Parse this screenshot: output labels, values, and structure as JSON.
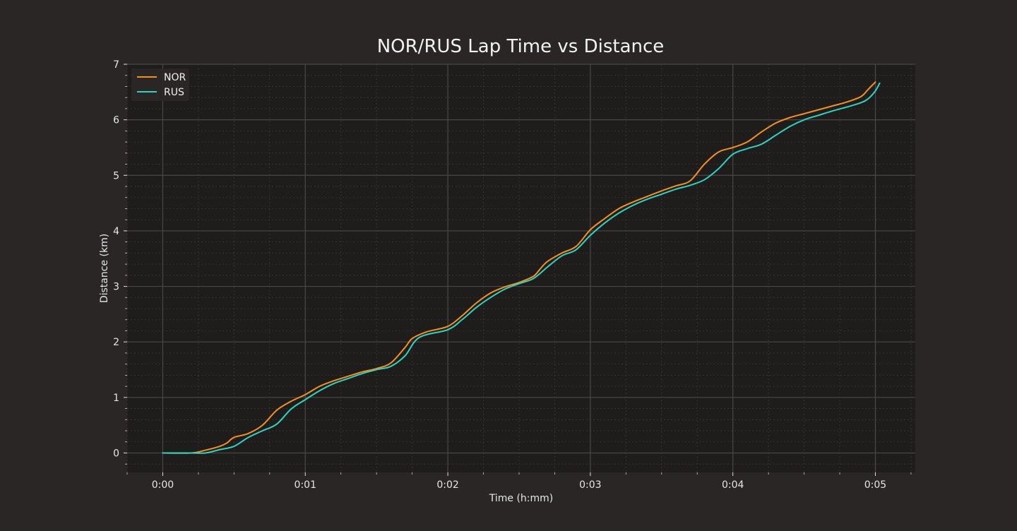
{
  "chart_data": {
    "type": "line",
    "title": "NOR/RUS Lap Time vs Distance",
    "xlabel": "Time (h:mm)",
    "ylabel": "Distance (km)",
    "xlim": [
      -0.25,
      5.28
    ],
    "ylim": [
      -0.35,
      7.0
    ],
    "x_ticks": [
      0,
      1,
      2,
      3,
      4,
      5
    ],
    "x_tick_labels": [
      "0:00",
      "0:01",
      "0:02",
      "0:03",
      "0:04",
      "0:05"
    ],
    "y_ticks": [
      0,
      1,
      2,
      3,
      4,
      5,
      6,
      7
    ],
    "y_tick_labels": [
      "0",
      "1",
      "2",
      "3",
      "4",
      "5",
      "6",
      "7"
    ],
    "grid": true,
    "legend_position": "top-left",
    "background_color": "#1f1d1c",
    "figure_color": "#292625",
    "series": [
      {
        "name": "NOR",
        "color": "#f5901e",
        "x": [
          0.0,
          0.2,
          0.3,
          0.4,
          0.45,
          0.5,
          0.6,
          0.7,
          0.8,
          0.9,
          1.0,
          1.1,
          1.2,
          1.3,
          1.4,
          1.5,
          1.6,
          1.7,
          1.75,
          1.85,
          2.0,
          2.1,
          2.2,
          2.3,
          2.4,
          2.5,
          2.6,
          2.65,
          2.7,
          2.8,
          2.9,
          3.0,
          3.1,
          3.2,
          3.3,
          3.4,
          3.5,
          3.6,
          3.7,
          3.8,
          3.9,
          4.0,
          4.1,
          4.2,
          4.3,
          4.4,
          4.5,
          4.6,
          4.7,
          4.8,
          4.9,
          4.95,
          5.0
        ],
        "y": [
          0.0,
          0.0,
          0.05,
          0.12,
          0.18,
          0.28,
          0.35,
          0.5,
          0.77,
          0.93,
          1.05,
          1.2,
          1.3,
          1.38,
          1.46,
          1.52,
          1.62,
          1.9,
          2.06,
          2.18,
          2.28,
          2.47,
          2.7,
          2.88,
          2.99,
          3.07,
          3.18,
          3.32,
          3.45,
          3.6,
          3.72,
          4.02,
          4.22,
          4.4,
          4.52,
          4.62,
          4.72,
          4.81,
          4.9,
          5.2,
          5.42,
          5.5,
          5.6,
          5.78,
          5.94,
          6.04,
          6.11,
          6.18,
          6.25,
          6.32,
          6.42,
          6.55,
          6.68
        ]
      },
      {
        "name": "RUS",
        "color": "#2ed3c1",
        "x": [
          0.0,
          0.2,
          0.3,
          0.4,
          0.5,
          0.6,
          0.7,
          0.8,
          0.9,
          1.0,
          1.1,
          1.2,
          1.3,
          1.4,
          1.5,
          1.6,
          1.7,
          1.8,
          2.0,
          2.1,
          2.2,
          2.3,
          2.4,
          2.5,
          2.6,
          2.7,
          2.8,
          2.9,
          3.0,
          3.1,
          3.2,
          3.3,
          3.4,
          3.5,
          3.6,
          3.7,
          3.8,
          3.9,
          4.0,
          4.1,
          4.2,
          4.3,
          4.4,
          4.5,
          4.6,
          4.7,
          4.8,
          4.9,
          4.95,
          5.0,
          5.03
        ],
        "y": [
          0.0,
          0.0,
          0.0,
          0.06,
          0.12,
          0.28,
          0.4,
          0.52,
          0.79,
          0.96,
          1.12,
          1.25,
          1.34,
          1.43,
          1.5,
          1.56,
          1.75,
          2.08,
          2.22,
          2.4,
          2.62,
          2.8,
          2.95,
          3.05,
          3.14,
          3.35,
          3.55,
          3.66,
          3.92,
          4.14,
          4.32,
          4.46,
          4.57,
          4.66,
          4.75,
          4.82,
          4.92,
          5.12,
          5.38,
          5.48,
          5.56,
          5.72,
          5.88,
          6.0,
          6.08,
          6.16,
          6.23,
          6.31,
          6.38,
          6.52,
          6.66
        ]
      }
    ]
  }
}
